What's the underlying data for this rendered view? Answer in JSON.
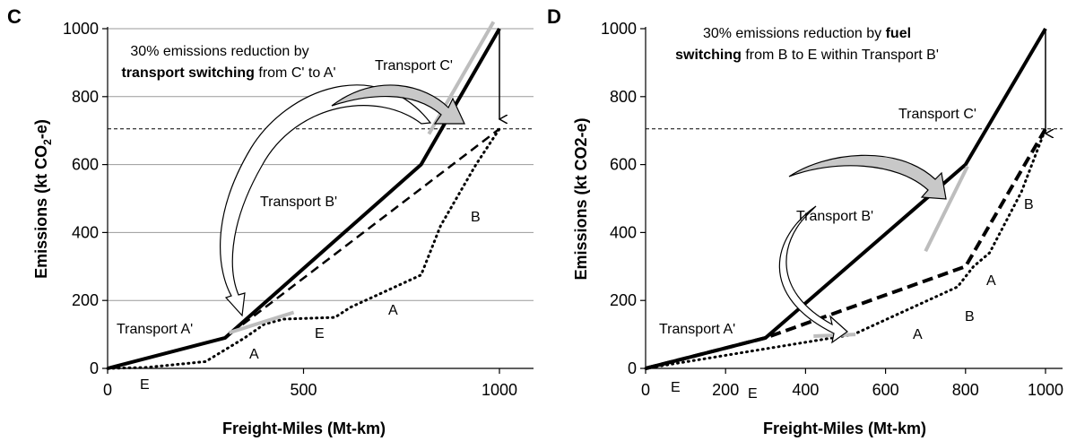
{
  "chart_data": [
    {
      "type": "line",
      "panel": "C",
      "xlabel": "Freight-Miles (Mt-km)",
      "ylabel_main": "Emissions (kt CO",
      "ylabel_sub": "2",
      "ylabel_end": "-e)",
      "xlim": [
        0,
        1000
      ],
      "ylim": [
        0,
        1000
      ],
      "xticks": [
        0,
        500,
        1000
      ],
      "yticks": [
        0,
        200,
        400,
        600,
        800,
        1000
      ],
      "grid": true,
      "threshold": 705,
      "series": [
        {
          "id": "solid",
          "style": "solid",
          "x": [
            0,
            300,
            800,
            1000
          ],
          "y": [
            0,
            90,
            600,
            1000
          ]
        },
        {
          "id": "dashed",
          "style": "dashed",
          "x": [
            0,
            300,
            1000
          ],
          "y": [
            0,
            90,
            705
          ]
        },
        {
          "id": "dotted",
          "style": "dotted",
          "x": [
            0,
            100,
            250,
            350,
            400,
            450,
            580,
            620,
            800,
            850,
            940,
            1000
          ],
          "y": [
            0,
            3,
            20,
            90,
            130,
            145,
            150,
            180,
            275,
            420,
            600,
            705
          ]
        },
        {
          "id": "grey1",
          "style": "grey",
          "x": [
            310,
            475
          ],
          "y": [
            105,
            165
          ]
        },
        {
          "id": "grey2",
          "style": "grey",
          "x": [
            820,
            985
          ],
          "y": [
            690,
            1020
          ]
        }
      ],
      "labels": {
        "transport_c": "Transport C'",
        "transport_b": "Transport B'",
        "transport_a": "Transport A'",
        "b": "B",
        "a1": "A",
        "a2": "A",
        "e1": "E",
        "e2": "E"
      },
      "annotation": {
        "line1": "30% emissions reduction by",
        "line2_bold": "transport switching",
        "line2_rest": " from C' to A'"
      }
    },
    {
      "type": "line",
      "panel": "D",
      "xlabel": "Freight-Miles (Mt-km)",
      "ylabel": "Emissions (kt CO2-e)",
      "xlim": [
        0,
        1000
      ],
      "ylim": [
        0,
        1000
      ],
      "xticks": [
        0,
        200,
        400,
        600,
        800,
        1000
      ],
      "yticks": [
        0,
        200,
        400,
        600,
        800,
        1000
      ],
      "grid": false,
      "threshold": 705,
      "series": [
        {
          "id": "solid",
          "style": "solid",
          "x": [
            0,
            300,
            800,
            1000
          ],
          "y": [
            0,
            90,
            600,
            1000
          ]
        },
        {
          "id": "dashed",
          "style": "thickdashed",
          "x": [
            0,
            300,
            800,
            1000
          ],
          "y": [
            0,
            90,
            300,
            705
          ]
        },
        {
          "id": "dotted",
          "style": "dotted",
          "x": [
            0,
            520,
            780,
            820,
            860,
            940,
            1000
          ],
          "y": [
            0,
            100,
            240,
            300,
            340,
            520,
            705
          ]
        },
        {
          "id": "grey1",
          "style": "grey",
          "x": [
            420,
            525
          ],
          "y": [
            95,
            100
          ]
        },
        {
          "id": "grey2",
          "style": "grey",
          "x": [
            700,
            805
          ],
          "y": [
            345,
            595
          ]
        }
      ],
      "labels": {
        "transport_c": "Transport C'",
        "transport_b": "Transport B'",
        "transport_a": "Transport A'",
        "b1": "B",
        "b2": "B",
        "a1": "A",
        "a2": "A",
        "e1": "E",
        "e2": "E"
      },
      "annotation": {
        "line1_pre": "30% emissions reduction by ",
        "line1_bold": "fuel",
        "line2_bold": "switching",
        "line2_rest": " from B to E within Transport B'"
      }
    }
  ]
}
